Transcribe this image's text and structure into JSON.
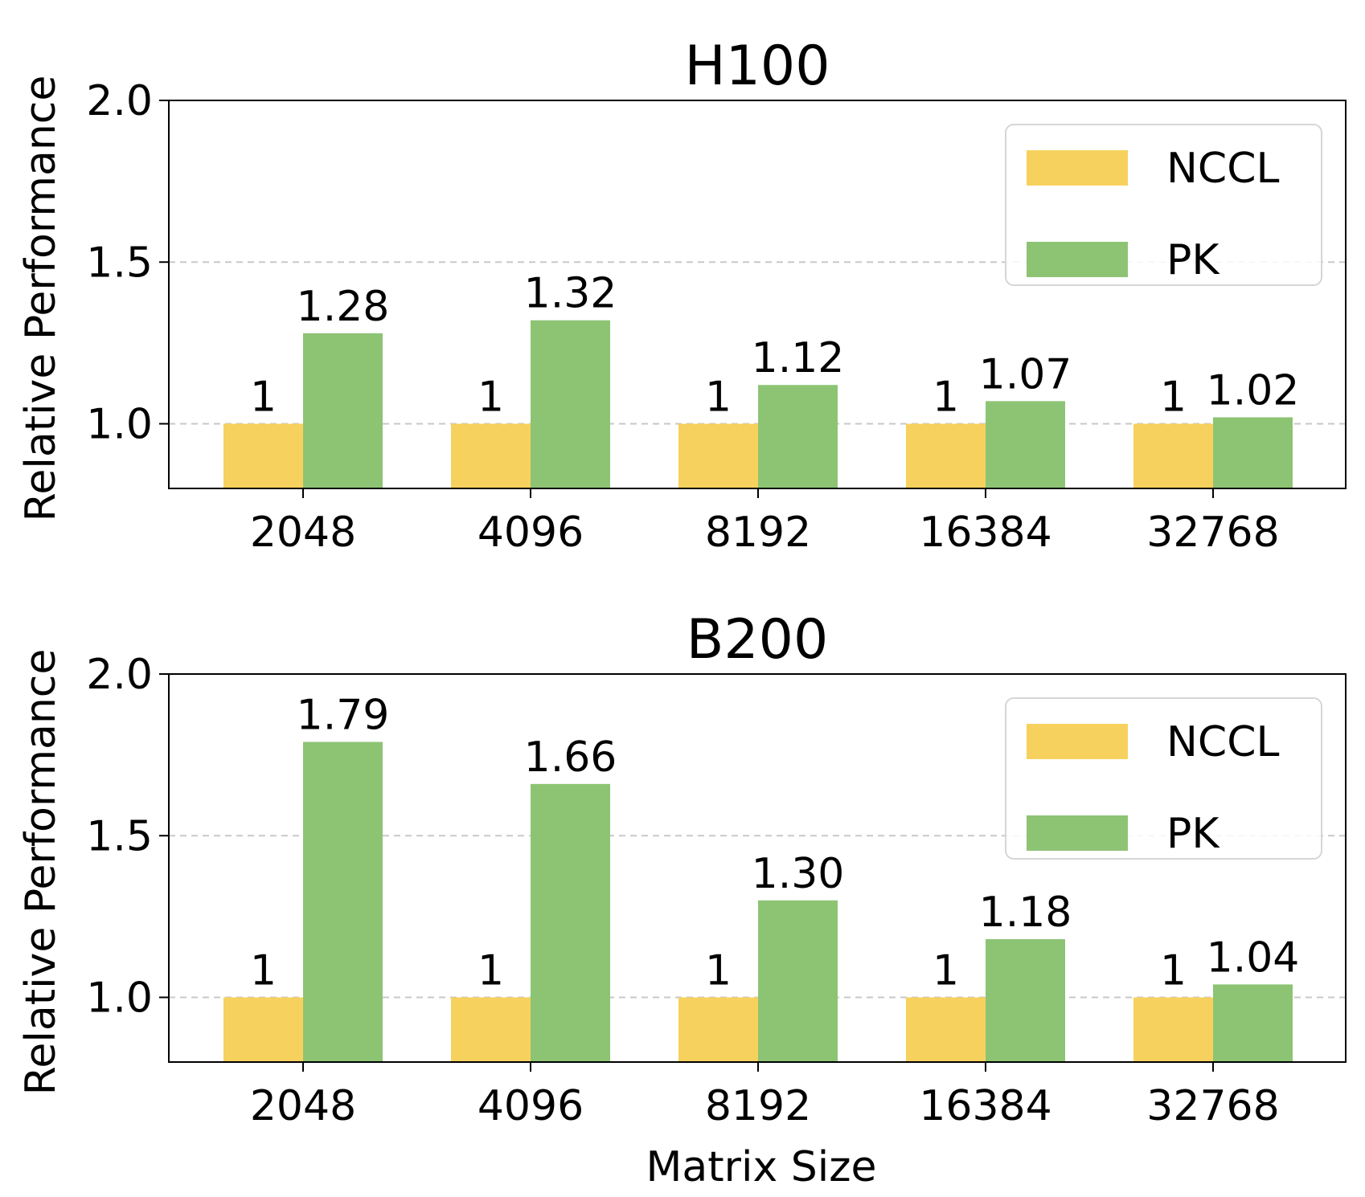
{
  "chart_data": [
    {
      "type": "bar",
      "title": "H100",
      "xlabel": "",
      "ylabel": "Relative Performance",
      "categories": [
        "2048",
        "4096",
        "8192",
        "16384",
        "32768"
      ],
      "series": [
        {
          "name": "NCCL",
          "color": "#F7D15E",
          "values": [
            1,
            1,
            1,
            1,
            1
          ],
          "labels": [
            "1",
            "1",
            "1",
            "1",
            "1"
          ]
        },
        {
          "name": "PK",
          "color": "#8DC474",
          "values": [
            1.28,
            1.32,
            1.12,
            1.07,
            1.02
          ],
          "labels": [
            "1.28",
            "1.32",
            "1.12",
            "1.07",
            "1.02"
          ]
        }
      ],
      "ylim": [
        0.8,
        2.0
      ],
      "yticks": [
        {
          "value": 1.0,
          "label": "1.0"
        },
        {
          "value": 1.5,
          "label": "1.5"
        },
        {
          "value": 2.0,
          "label": "2.0"
        }
      ],
      "grid": "horizontal dashed",
      "legend": "top-right"
    },
    {
      "type": "bar",
      "title": "B200",
      "xlabel": "Matrix Size",
      "ylabel": "Relative Performance",
      "categories": [
        "2048",
        "4096",
        "8192",
        "16384",
        "32768"
      ],
      "series": [
        {
          "name": "NCCL",
          "color": "#F7D15E",
          "values": [
            1,
            1,
            1,
            1,
            1
          ],
          "labels": [
            "1",
            "1",
            "1",
            "1",
            "1"
          ]
        },
        {
          "name": "PK",
          "color": "#8DC474",
          "values": [
            1.79,
            1.66,
            1.3,
            1.18,
            1.04
          ],
          "labels": [
            "1.79",
            "1.66",
            "1.30",
            "1.18",
            "1.04"
          ]
        }
      ],
      "ylim": [
        0.8,
        2.0
      ],
      "yticks": [
        {
          "value": 1.0,
          "label": "1.0"
        },
        {
          "value": 1.5,
          "label": "1.5"
        },
        {
          "value": 2.0,
          "label": "2.0"
        }
      ],
      "grid": "horizontal dashed",
      "legend": "top-right"
    }
  ]
}
